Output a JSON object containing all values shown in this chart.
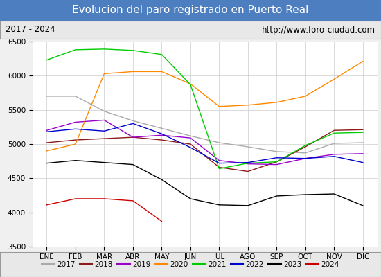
{
  "title": "Evolucion del paro registrado en Puerto Real",
  "subtitle_left": "2017 - 2024",
  "subtitle_right": "http://www.foro-ciudad.com",
  "months": [
    "ENE",
    "FEB",
    "MAR",
    "ABR",
    "MAY",
    "JUN",
    "JUL",
    "AGO",
    "SEP",
    "OCT",
    "NOV",
    "DIC"
  ],
  "ylim": [
    3500,
    6500
  ],
  "yticks": [
    3500,
    4000,
    4500,
    5000,
    5500,
    6000,
    6500
  ],
  "series": {
    "2017": {
      "color": "#aaaaaa",
      "data": [
        5700,
        5700,
        5480,
        5340,
        5230,
        5120,
        5020,
        4960,
        4890,
        4870,
        5010,
        5020
      ]
    },
    "2018": {
      "color": "#8b1a1a",
      "data": [
        5020,
        5060,
        5080,
        5100,
        5060,
        5000,
        4660,
        4600,
        4740,
        4960,
        5200,
        5210
      ]
    },
    "2019": {
      "color": "#9900cc",
      "data": [
        5200,
        5320,
        5350,
        5100,
        5130,
        5090,
        4760,
        4710,
        4700,
        4790,
        4850,
        4860
      ]
    },
    "2020": {
      "color": "#ff8800",
      "data": [
        4900,
        5000,
        6030,
        6060,
        6060,
        5880,
        5550,
        5570,
        5610,
        5700,
        5950,
        6210
      ]
    },
    "2021": {
      "color": "#00cc00",
      "data": [
        6230,
        6380,
        6390,
        6370,
        6310,
        5870,
        4640,
        4720,
        4740,
        4980,
        5160,
        5170
      ]
    },
    "2022": {
      "color": "#0000cc",
      "data": [
        5180,
        5220,
        5190,
        5300,
        5150,
        4950,
        4720,
        4730,
        4800,
        4790,
        4820,
        4730
      ]
    },
    "2023": {
      "color": "#000000",
      "data": [
        4720,
        4760,
        4730,
        4700,
        4480,
        4200,
        4110,
        4100,
        4240,
        4260,
        4270,
        4100
      ]
    },
    "2024": {
      "color": "#cc0000",
      "data": [
        4110,
        4200,
        4200,
        4170,
        3870,
        null,
        null,
        null,
        null,
        null,
        null,
        null
      ]
    }
  },
  "bg_title": "#4d7ebf",
  "bg_subtitle": "#e8e8e8",
  "bg_plot": "#ffffff",
  "grid_color": "#cccccc",
  "title_color": "#ffffff",
  "title_fontsize": 11,
  "subtitle_fontsize": 8.5,
  "legend_fontsize": 7.5,
  "tick_fontsize": 7.5
}
